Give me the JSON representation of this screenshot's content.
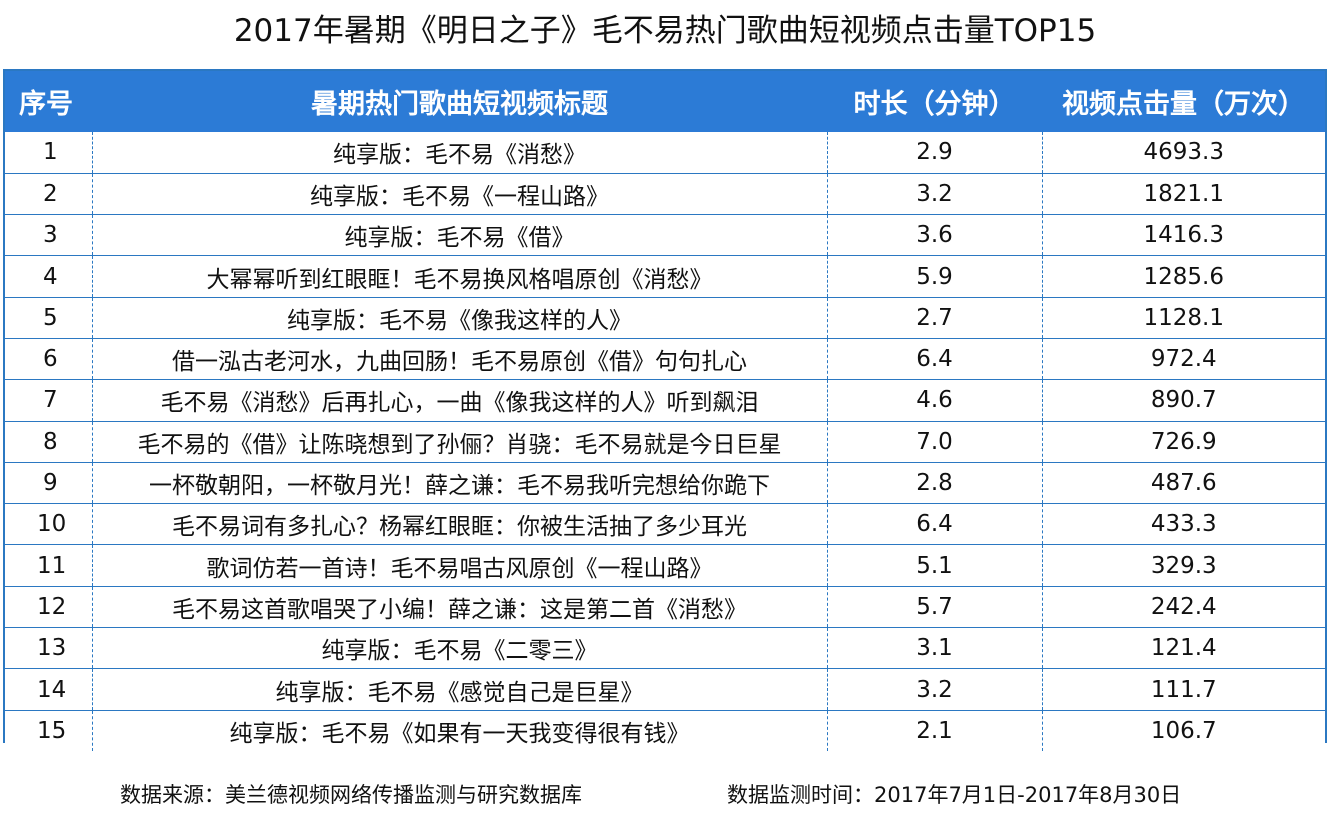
{
  "title": "2017年暑期《明日之子》毛不易热门歌曲短视频点击量TOP15",
  "table": {
    "headers": [
      "序号",
      "暑期热门歌曲短视频标题",
      "时长（分钟）",
      "视频点击量（万次）"
    ],
    "rows": [
      {
        "no": "1",
        "title": "纯享版：毛不易《消愁》",
        "duration": "2.9",
        "views": "4693.3"
      },
      {
        "no": "2",
        "title": "纯享版：毛不易《一程山路》",
        "duration": "3.2",
        "views": "1821.1"
      },
      {
        "no": "3",
        "title": "纯享版：毛不易《借》",
        "duration": "3.6",
        "views": "1416.3"
      },
      {
        "no": "4",
        "title": "大幂幂听到红眼眶！毛不易换风格唱原创《消愁》",
        "duration": "5.9",
        "views": "1285.6"
      },
      {
        "no": "5",
        "title": "纯享版：毛不易《像我这样的人》",
        "duration": "2.7",
        "views": "1128.1"
      },
      {
        "no": "6",
        "title": "借一泓古老河水，九曲回肠！毛不易原创《借》句句扎心",
        "duration": "6.4",
        "views": "972.4"
      },
      {
        "no": "7",
        "title": "毛不易《消愁》后再扎心，一曲《像我这样的人》听到飙泪",
        "duration": "4.6",
        "views": "890.7"
      },
      {
        "no": "8",
        "title": "毛不易的《借》让陈晓想到了孙俪？肖骁：毛不易就是今日巨星",
        "duration": "7.0",
        "views": "726.9"
      },
      {
        "no": "9",
        "title": "一杯敬朝阳，一杯敬月光！薛之谦：毛不易我听完想给你跪下",
        "duration": "2.8",
        "views": "487.6"
      },
      {
        "no": "10",
        "title": "毛不易词有多扎心？杨幂红眼眶：你被生活抽了多少耳光",
        "duration": "6.4",
        "views": "433.3"
      },
      {
        "no": "11",
        "title": "歌词仿若一首诗！毛不易唱古风原创《一程山路》",
        "duration": "5.1",
        "views": "329.3"
      },
      {
        "no": "12",
        "title": "毛不易这首歌唱哭了小编！薛之谦：这是第二首《消愁》",
        "duration": "5.7",
        "views": "242.4"
      },
      {
        "no": "13",
        "title": "纯享版：毛不易《二零三》",
        "duration": "3.1",
        "views": "121.4"
      },
      {
        "no": "14",
        "title": "纯享版：毛不易《感觉自己是巨星》",
        "duration": "3.2",
        "views": "111.7"
      },
      {
        "no": "15",
        "title": "纯享版：毛不易《如果有一天我变得很有钱》",
        "duration": "2.1",
        "views": "106.7"
      }
    ]
  },
  "footer": {
    "source": "数据来源：美兰德视频网络传播监测与研究数据库",
    "period": "数据监测时间：2017年7月1日-2017年8月30日"
  },
  "colors": {
    "header_bg": "#2c7bd6",
    "border": "#2b78c2"
  }
}
